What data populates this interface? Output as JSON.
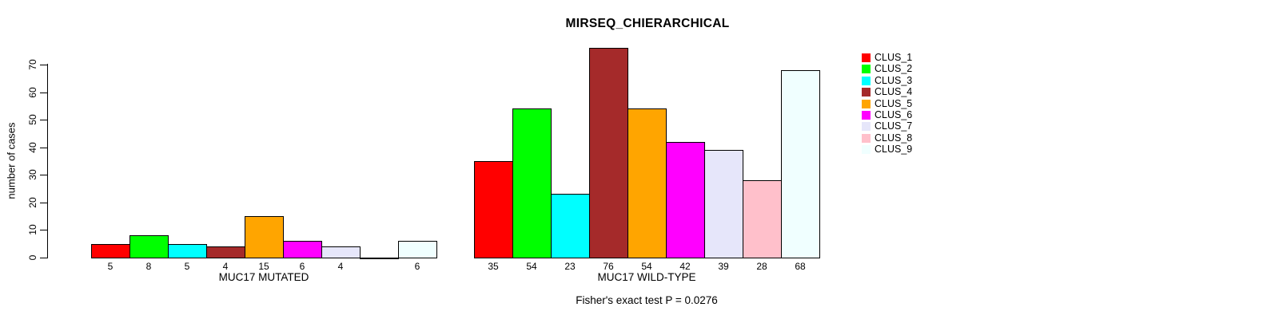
{
  "chart_data": {
    "type": "bar",
    "title": "MIRSEQ_CHIERARCHICAL",
    "ylabel": "number of cases",
    "xlabel": "",
    "ylim": [
      0,
      70
    ],
    "yticks": [
      0,
      10,
      20,
      30,
      40,
      50,
      60,
      70
    ],
    "grid": false,
    "legend_position": "right",
    "legend_entries": [
      "CLUS_1",
      "CLUS_2",
      "CLUS_3",
      "CLUS_4",
      "CLUS_5",
      "CLUS_6",
      "CLUS_7",
      "CLUS_8",
      "CLUS_9"
    ],
    "colors": [
      "#FF0000",
      "#00FF00",
      "#00FFFF",
      "#A52A2A",
      "#FFA500",
      "#FF00FF",
      "#E6E6FA",
      "#FFC0CB",
      "#F0FFFF"
    ],
    "categories": [
      "CLUS_1",
      "CLUS_2",
      "CLUS_3",
      "CLUS_4",
      "CLUS_5",
      "CLUS_6",
      "CLUS_7",
      "CLUS_8",
      "CLUS_9"
    ],
    "series": [
      {
        "name": "MUC17 MUTATED",
        "label": "MUC17 MUTATED",
        "values": [
          5,
          8,
          5,
          4,
          15,
          6,
          4,
          0,
          6
        ]
      },
      {
        "name": "MUC17 WILD-TYPE",
        "label": "MUC17 WILD-TYPE",
        "values": [
          35,
          54,
          23,
          76,
          54,
          42,
          39,
          28,
          68
        ]
      }
    ],
    "bar_value_labels_shown": true,
    "zero_value_label_hidden": true,
    "footnote": "Fisher's exact test P = 0.0276",
    "axis_color": "#000000",
    "bar_border_color": "#000000",
    "background_color": "#FFFFFF"
  }
}
